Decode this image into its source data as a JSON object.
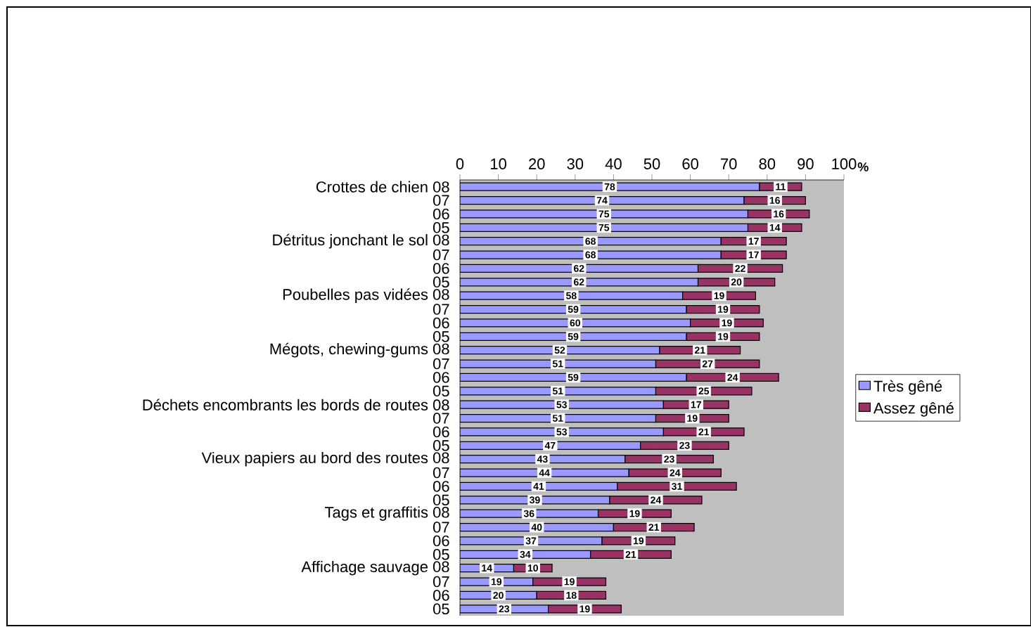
{
  "chart_data": {
    "type": "bar",
    "orientation": "horizontal",
    "stacked": true,
    "data_labels": true,
    "legend": "right",
    "xlabel": "%",
    "xlim": [
      0,
      100
    ],
    "xticks": [
      0,
      10,
      20,
      30,
      40,
      50,
      60,
      70,
      80,
      90,
      100
    ],
    "categories": [
      "Crottes de chien 08",
      "07",
      "06",
      "05",
      "Détritus jonchant le sol 08",
      "07",
      "06",
      "05",
      "Poubelles pas vidées 08",
      "07",
      "06",
      "05",
      "Mégots, chewing-gums 08",
      "07",
      "06",
      "05",
      "Déchets encombrants les bords de routes 08",
      "07",
      "06",
      "05",
      "Vieux papiers au bord des routes 08",
      "07",
      "06",
      "05",
      "Tags et graffitis 08",
      "07",
      "06",
      "05",
      "Affichage sauvage 08",
      "07",
      "06",
      "05"
    ],
    "series": [
      {
        "name": "Très gêné",
        "color": "#9999ff",
        "values": [
          78,
          74,
          75,
          75,
          68,
          68,
          62,
          62,
          58,
          59,
          60,
          59,
          52,
          51,
          59,
          51,
          53,
          51,
          53,
          47,
          43,
          44,
          41,
          39,
          36,
          40,
          37,
          34,
          14,
          19,
          20,
          23
        ]
      },
      {
        "name": "Assez gêné",
        "color": "#993366",
        "values": [
          11,
          16,
          16,
          14,
          17,
          17,
          22,
          20,
          19,
          19,
          19,
          19,
          21,
          27,
          24,
          25,
          17,
          19,
          21,
          23,
          23,
          24,
          31,
          24,
          19,
          21,
          19,
          21,
          10,
          19,
          18,
          19
        ]
      }
    ]
  }
}
